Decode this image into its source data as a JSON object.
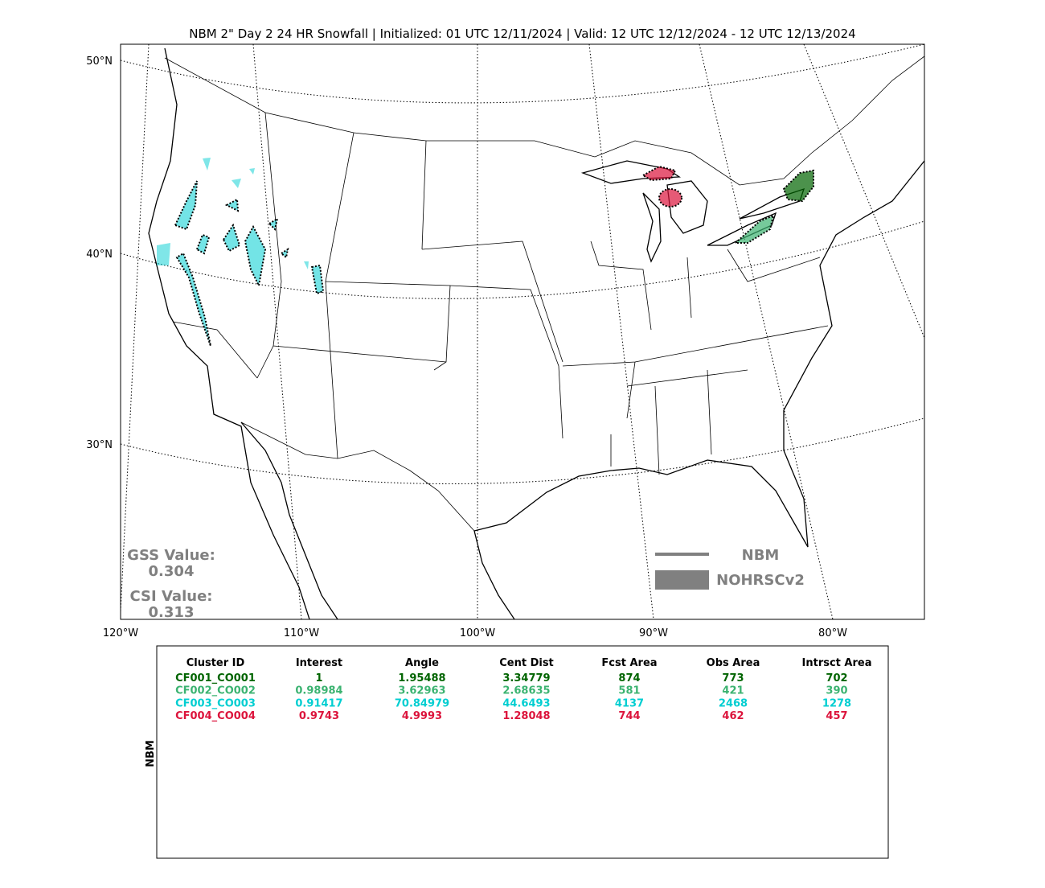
{
  "title": "NBM 2\" Day 2 24 HR Snowfall | Initialized: 01 UTC 12/11/2024 | Valid: 12 UTC 12/12/2024 - 12 UTC 12/13/2024",
  "map": {
    "lat_labels": [
      "50°N",
      "40°N",
      "30°N"
    ],
    "lon_labels": [
      "120°W",
      "110°W",
      "100°W",
      "90°W",
      "80°W"
    ],
    "gss_label": "GSS Value:",
    "gss_value": "0.304",
    "csi_label": "CSI Value:",
    "csi_value": "0.313",
    "legend": {
      "forecast": "NBM",
      "observed": "NOHRSCv2"
    }
  },
  "table": {
    "side_label": "NBM",
    "headers": [
      "Cluster ID",
      "Interest",
      "Angle",
      "Cent Dist",
      "Fcst Area",
      "Obs Area",
      "Intrsct Area"
    ],
    "rows": [
      {
        "color": "#006400",
        "cells": [
          "CF001_CO001",
          "1",
          "1.95488",
          "3.34779",
          "874",
          "773",
          "702"
        ]
      },
      {
        "color": "#3cb371",
        "cells": [
          "CF002_CO002",
          "0.98984",
          "3.62963",
          "2.68635",
          "581",
          "421",
          "390"
        ]
      },
      {
        "color": "#00ced1",
        "cells": [
          "CF003_CO003",
          "0.91417",
          "70.84979",
          "44.6493",
          "4137",
          "2468",
          "1278"
        ]
      },
      {
        "color": "#dc143c",
        "cells": [
          "CF004_CO004",
          "0.9743",
          "4.9993",
          "1.28048",
          "744",
          "462",
          "457"
        ]
      }
    ]
  }
}
